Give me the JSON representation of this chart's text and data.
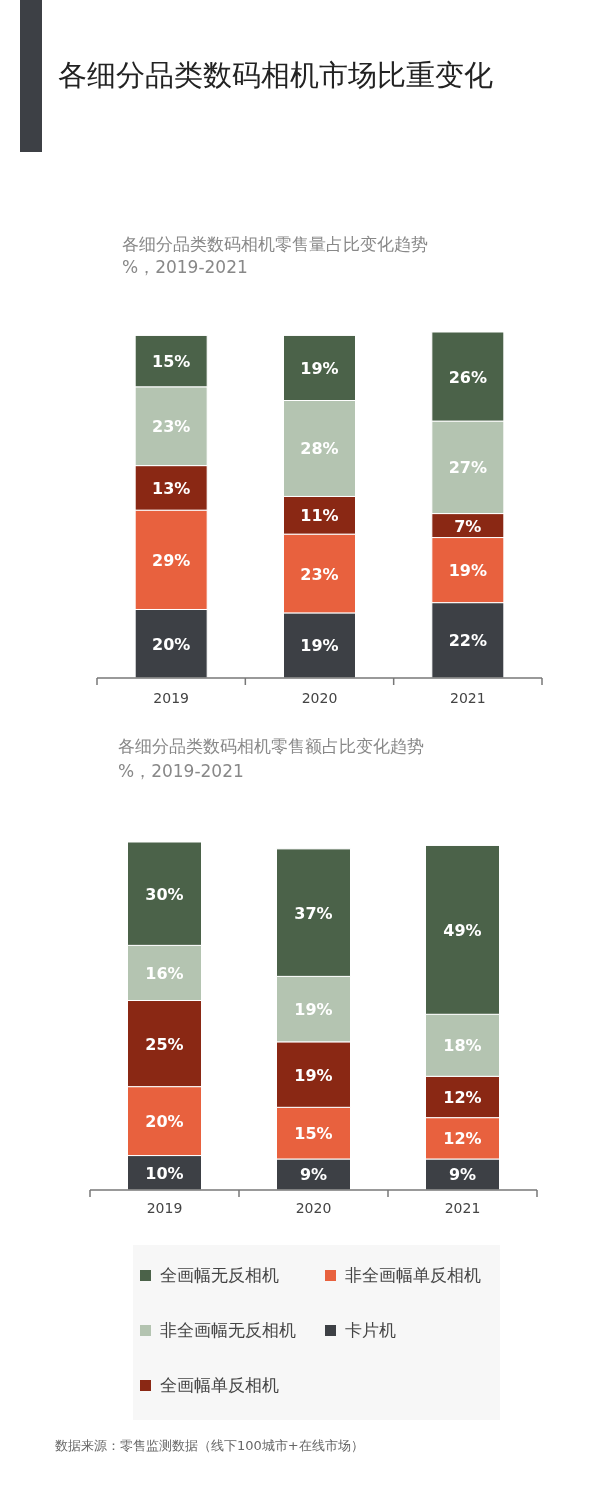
{
  "chart_data": [
    {
      "type": "bar",
      "stacked": true,
      "legend": false,
      "title": "各细分品类数码相机市场比重变化",
      "subtitle": "各细分品类数码相机零售量占比变化趋势",
      "annotations": [
        "%，2019-2021"
      ],
      "categories": [
        "2019",
        "2020",
        "2021"
      ],
      "series": [
        {
          "color": "#3d4045",
          "values": [
            20,
            19,
            22
          ],
          "value_labels": [
            "20%",
            "19%",
            "22%"
          ]
        },
        {
          "color": "#e8613e",
          "values": [
            29,
            23,
            19
          ],
          "value_labels": [
            "29%",
            "23%",
            "19%"
          ]
        },
        {
          "color": "#8a2814",
          "values": [
            13,
            11,
            7
          ],
          "value_labels": [
            "13%",
            "11%",
            "7%"
          ]
        },
        {
          "color": "#b4c4b1",
          "values": [
            23,
            28,
            27
          ],
          "value_labels": [
            "23%",
            "28%",
            "27%"
          ]
        },
        {
          "color": "#4b6249",
          "values": [
            15,
            19,
            26
          ],
          "value_labels": [
            "15%",
            "19%",
            "26%"
          ]
        }
      ]
    },
    {
      "type": "bar",
      "stacked": true,
      "legend": "bottom",
      "title": "各细分品类数码相机零售额占比变化趋势",
      "annotations": [
        "%，2019-2021",
        "数据来源：零售监测数据（线下100城市+在线市场）"
      ],
      "categories": [
        "2019",
        "2020",
        "2021"
      ],
      "series": [
        {
          "name": "卡片机",
          "color": "#3d4045",
          "values": [
            10,
            9,
            9
          ],
          "value_labels": [
            "10%",
            "9%",
            "9%"
          ]
        },
        {
          "name": "非全画幅单反相机",
          "color": "#e8613e",
          "values": [
            20,
            15,
            12
          ],
          "value_labels": [
            "20%",
            "15%",
            "12%"
          ]
        },
        {
          "name": "全画幅单反相机",
          "color": "#8a2814",
          "values": [
            25,
            19,
            12
          ],
          "value_labels": [
            "25%",
            "19%",
            "12%"
          ]
        },
        {
          "name": "非全画幅无反相机",
          "color": "#b4c4b1",
          "values": [
            16,
            19,
            18
          ],
          "value_labels": [
            "16%",
            "19%",
            "18%"
          ]
        },
        {
          "name": "全画幅无反相机",
          "color": "#4b6249",
          "values": [
            30,
            37,
            49
          ],
          "value_labels": [
            "30%",
            "37%",
            "49%"
          ]
        }
      ]
    }
  ]
}
